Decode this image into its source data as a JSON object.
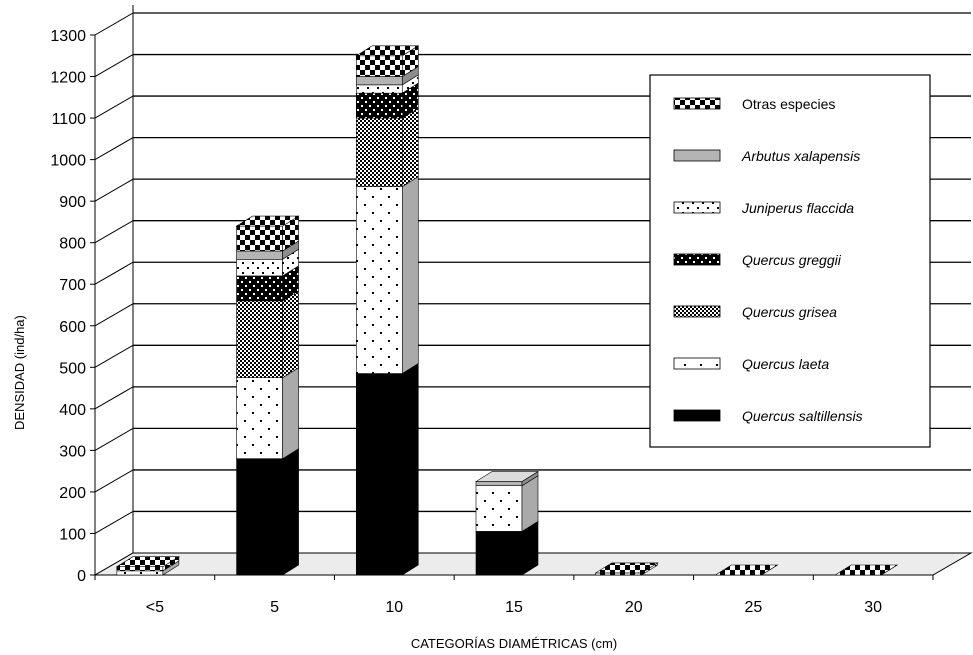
{
  "chart_data": {
    "type": "bar",
    "stacked": true,
    "three_d": true,
    "title": "",
    "xlabel": "CATEGORÍAS DIAMÉTRICAS (cm)",
    "ylabel": "DENSIDAD (ind/ha)",
    "ylim": [
      0,
      1300
    ],
    "yticks": [
      0,
      100,
      200,
      300,
      400,
      500,
      600,
      700,
      800,
      900,
      1000,
      1100,
      1200,
      1300
    ],
    "grid": true,
    "legend_position": "right",
    "categories": [
      "<5",
      "5",
      "10",
      "15",
      "20",
      "25",
      "30"
    ],
    "series": [
      {
        "name": "Quercus saltillensis",
        "italic": true,
        "pattern": "solid-black",
        "values": [
          0,
          280,
          485,
          105,
          0,
          0,
          0
        ]
      },
      {
        "name": "Quercus laeta",
        "italic": true,
        "pattern": "sparse-dots",
        "values": [
          10,
          195,
          450,
          110,
          0,
          0,
          0
        ]
      },
      {
        "name": "Quercus grisea",
        "italic": true,
        "pattern": "checker-fine",
        "values": [
          0,
          185,
          165,
          0,
          0,
          0,
          0
        ]
      },
      {
        "name": "Quercus greggii",
        "italic": true,
        "pattern": "checker-bold",
        "values": [
          0,
          60,
          60,
          0,
          0,
          0,
          0
        ]
      },
      {
        "name": "Juniperus flaccida",
        "italic": true,
        "pattern": "dots",
        "values": [
          0,
          40,
          20,
          0,
          0,
          0,
          0
        ]
      },
      {
        "name": "Arbutus xalapensis",
        "italic": true,
        "pattern": "gray",
        "values": [
          0,
          20,
          20,
          10,
          0,
          0,
          0
        ]
      },
      {
        "name": "Otras especies",
        "italic": false,
        "pattern": "checker-large",
        "values": [
          10,
          60,
          50,
          0,
          5,
          0,
          0
        ]
      }
    ],
    "colors": {
      "black": "#000000",
      "gray": "#b4b4b4",
      "white": "#ffffff",
      "floor": "#ececec"
    }
  }
}
